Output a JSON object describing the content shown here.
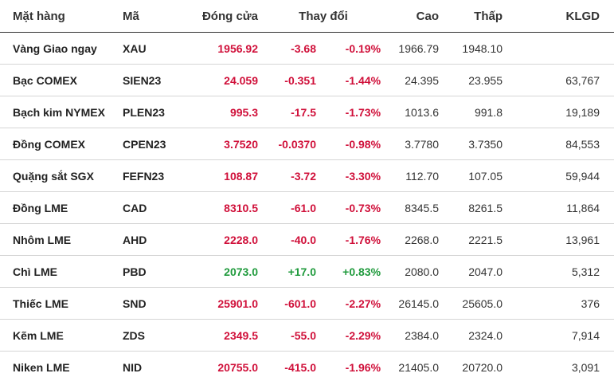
{
  "colors": {
    "down": "#d0103a",
    "up": "#1f9a3c",
    "text": "#222222"
  },
  "headers": {
    "name": "Mặt hàng",
    "code": "Mã",
    "close": "Đóng cửa",
    "change": "Thay đổi",
    "high": "Cao",
    "low": "Thấp",
    "volume": "KLGD"
  },
  "rows": [
    {
      "name": "Vàng Giao ngay",
      "code": "XAU",
      "close": "1956.92",
      "change": "-3.68",
      "pct": "-0.19%",
      "high": "1966.79",
      "low": "1948.10",
      "volume": "",
      "trend": "down"
    },
    {
      "name": "Bạc COMEX",
      "code": "SIEN23",
      "close": "24.059",
      "change": "-0.351",
      "pct": "-1.44%",
      "high": "24.395",
      "low": "23.955",
      "volume": "63,767",
      "trend": "down"
    },
    {
      "name": "Bạch kim NYMEX",
      "code": "PLEN23",
      "close": "995.3",
      "change": "-17.5",
      "pct": "-1.73%",
      "high": "1013.6",
      "low": "991.8",
      "volume": "19,189",
      "trend": "down"
    },
    {
      "name": "Đồng COMEX",
      "code": "CPEN23",
      "close": "3.7520",
      "change": "-0.0370",
      "pct": "-0.98%",
      "high": "3.7780",
      "low": "3.7350",
      "volume": "84,553",
      "trend": "down"
    },
    {
      "name": "Quặng sắt SGX",
      "code": "FEFN23",
      "close": "108.87",
      "change": "-3.72",
      "pct": "-3.30%",
      "high": "112.70",
      "low": "107.05",
      "volume": "59,944",
      "trend": "down"
    },
    {
      "name": "Đồng LME",
      "code": "CAD",
      "close": "8310.5",
      "change": "-61.0",
      "pct": "-0.73%",
      "high": "8345.5",
      "low": "8261.5",
      "volume": "11,864",
      "trend": "down"
    },
    {
      "name": "Nhôm LME",
      "code": "AHD",
      "close": "2228.0",
      "change": "-40.0",
      "pct": "-1.76%",
      "high": "2268.0",
      "low": "2221.5",
      "volume": "13,961",
      "trend": "down"
    },
    {
      "name": "Chì LME",
      "code": "PBD",
      "close": "2073.0",
      "change": "+17.0",
      "pct": "+0.83%",
      "high": "2080.0",
      "low": "2047.0",
      "volume": "5,312",
      "trend": "up"
    },
    {
      "name": "Thiếc LME",
      "code": "SND",
      "close": "25901.0",
      "change": "-601.0",
      "pct": "-2.27%",
      "high": "26145.0",
      "low": "25605.0",
      "volume": "376",
      "trend": "down"
    },
    {
      "name": "Kẽm LME",
      "code": "ZDS",
      "close": "2349.5",
      "change": "-55.0",
      "pct": "-2.29%",
      "high": "2384.0",
      "low": "2324.0",
      "volume": "7,914",
      "trend": "down"
    },
    {
      "name": "Niken LME",
      "code": "NID",
      "close": "20755.0",
      "change": "-415.0",
      "pct": "-1.96%",
      "high": "21405.0",
      "low": "20720.0",
      "volume": "3,091",
      "trend": "down"
    }
  ]
}
